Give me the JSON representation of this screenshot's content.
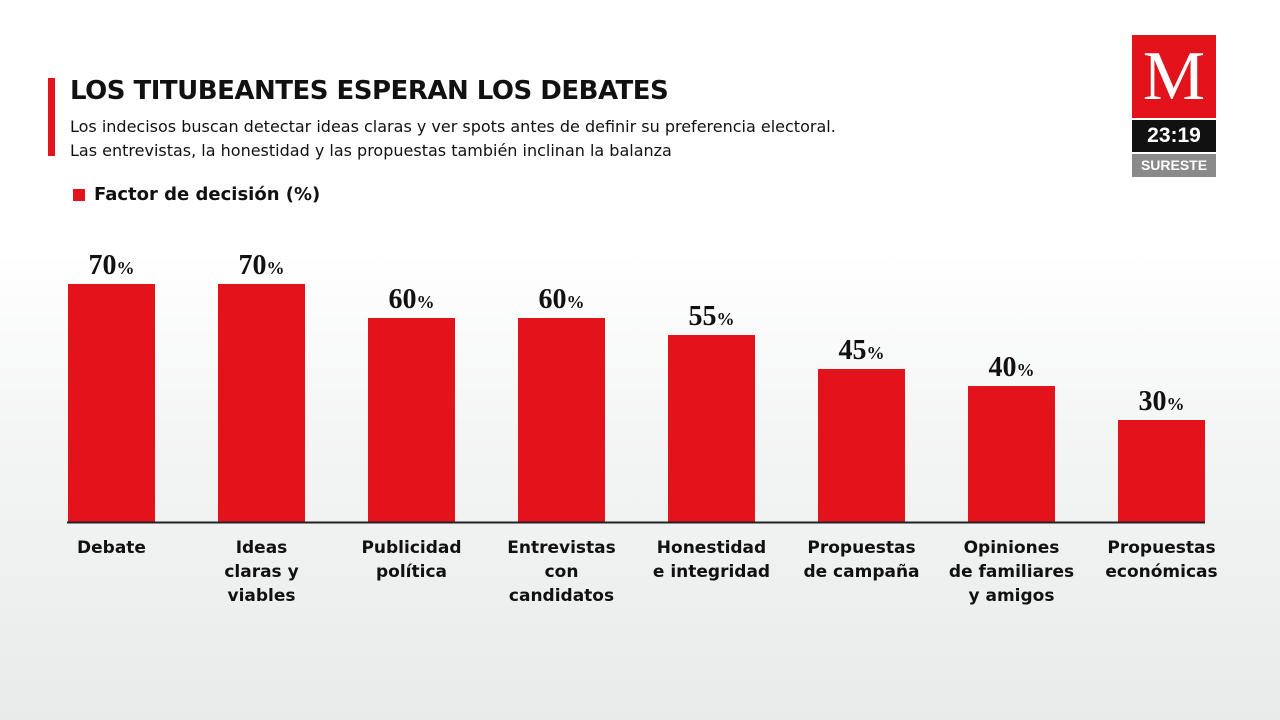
{
  "header": {
    "title": "LOS TITUBEANTES ESPERAN LOS DEBATES",
    "subtitle_line1": "Los indecisos buscan detectar ideas claras y ver spots antes de definir su preferencia electoral.",
    "subtitle_line2": "Las entrevistas, la honestidad y las propuestas también inclinan la balanza"
  },
  "logo": {
    "letter": "M",
    "time": "23:19",
    "region": "SURESTE"
  },
  "colors": {
    "accent": "#e3131b",
    "text": "#111111",
    "axis": "#222222"
  },
  "chart_data": {
    "type": "bar",
    "title": "LOS TITUBEANTES ESPERAN LOS DEBATES",
    "legend": "Factor de decisión (%)",
    "categories": [
      [
        "Debate"
      ],
      [
        "Ideas",
        "claras y",
        "viables"
      ],
      [
        "Publicidad",
        "política"
      ],
      [
        "Entrevistas",
        "con",
        "candidatos"
      ],
      [
        "Honestidad",
        "e integridad"
      ],
      [
        "Propuestas",
        "de campaña"
      ],
      [
        "Opiniones",
        "de familiares",
        "y amigos"
      ],
      [
        "Propuestas",
        "económicas"
      ]
    ],
    "series": [
      {
        "name": "Factor de decisión (%)",
        "values": [
          70,
          70,
          60,
          60,
          55,
          45,
          40,
          30
        ]
      }
    ],
    "value_suffix": "%",
    "xlabel": "",
    "ylabel": "",
    "ylim": [
      0,
      70
    ],
    "grid": false
  }
}
